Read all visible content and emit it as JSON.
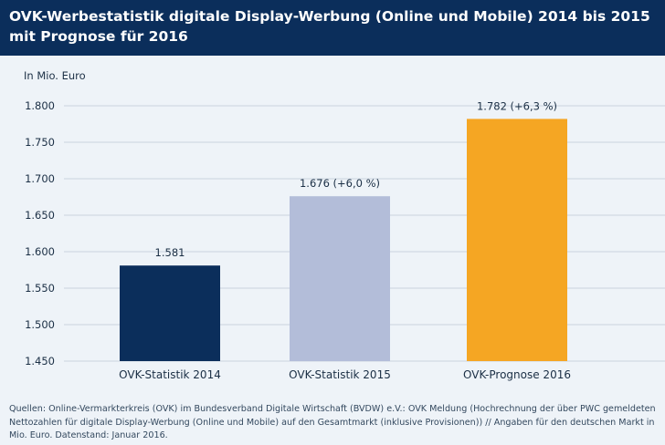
{
  "header": {
    "title": "OVK-Werbestatistik digitale Display-Werbung (Online und Mobile) 2014 bis 2015\nmit Prognose für 2016"
  },
  "chart_data": {
    "type": "bar",
    "title": "OVK-Werbestatistik digitale Display-Werbung (Online und Mobile) 2014 bis 2015 mit Prognose für 2016",
    "unit_label": "In Mio. Euro",
    "categories": [
      "OVK-Statistik 2014",
      "OVK-Statistik 2015",
      "OVK-Prognose 2016"
    ],
    "values": [
      1581,
      1676,
      1782
    ],
    "data_labels": [
      "1.581",
      "1.676 (+6,0 %)",
      "1.782 (+6,3 %)"
    ],
    "bar_colors": [
      "#0b2e5b",
      "#b3bdd9",
      "#f5a623"
    ],
    "ylim": [
      1450,
      1800
    ],
    "yticks": [
      1450,
      1500,
      1550,
      1600,
      1650,
      1700,
      1750,
      1800
    ],
    "ytick_labels": [
      "1.450",
      "1.500",
      "1.550",
      "1.600",
      "1.650",
      "1.700",
      "1.750",
      "1.800"
    ],
    "grid": true,
    "colors": {
      "grid": "#c9d3de",
      "axis_text": "#1b2f45"
    }
  },
  "sources": "Quellen: Online-Vermarkterkreis (OVK) im Bundesverband Digitale Wirtschaft (BVDW) e.V.: OVK Meldung (Hochrechnung der über PWC gemeldeten Nettozahlen für digitale Display-Werbung (Online und Mobile) auf den Gesamtmarkt (inklusive Provisionen)) // Angaben für den deutschen Markt in Mio. Euro. Datenstand: Januar 2016."
}
